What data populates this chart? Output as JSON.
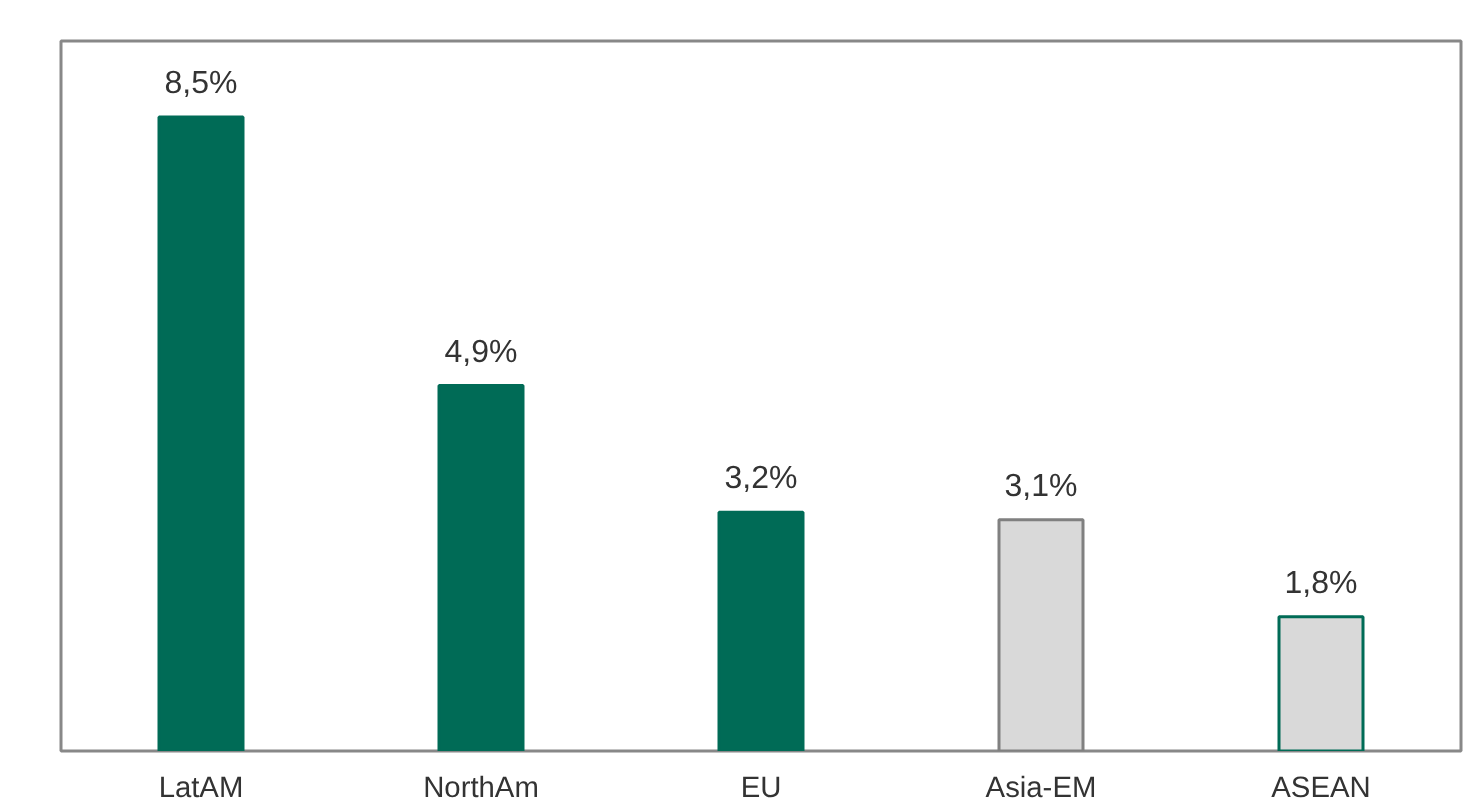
{
  "chart_data": {
    "type": "bar",
    "categories": [
      "LatAM",
      "NorthAm",
      "EU",
      "Asia-EM",
      "ASEAN"
    ],
    "values": [
      8.5,
      4.9,
      3.2,
      3.1,
      1.8
    ],
    "colors": [
      "#006b56",
      "#006b56",
      "#006b56",
      "#d9d9d9",
      "#d9d9d9"
    ],
    "value_labels": [
      "8,5%",
      "4,9%",
      "3,2%",
      "3,1%",
      "1,8%"
    ],
    "grid": false
  }
}
